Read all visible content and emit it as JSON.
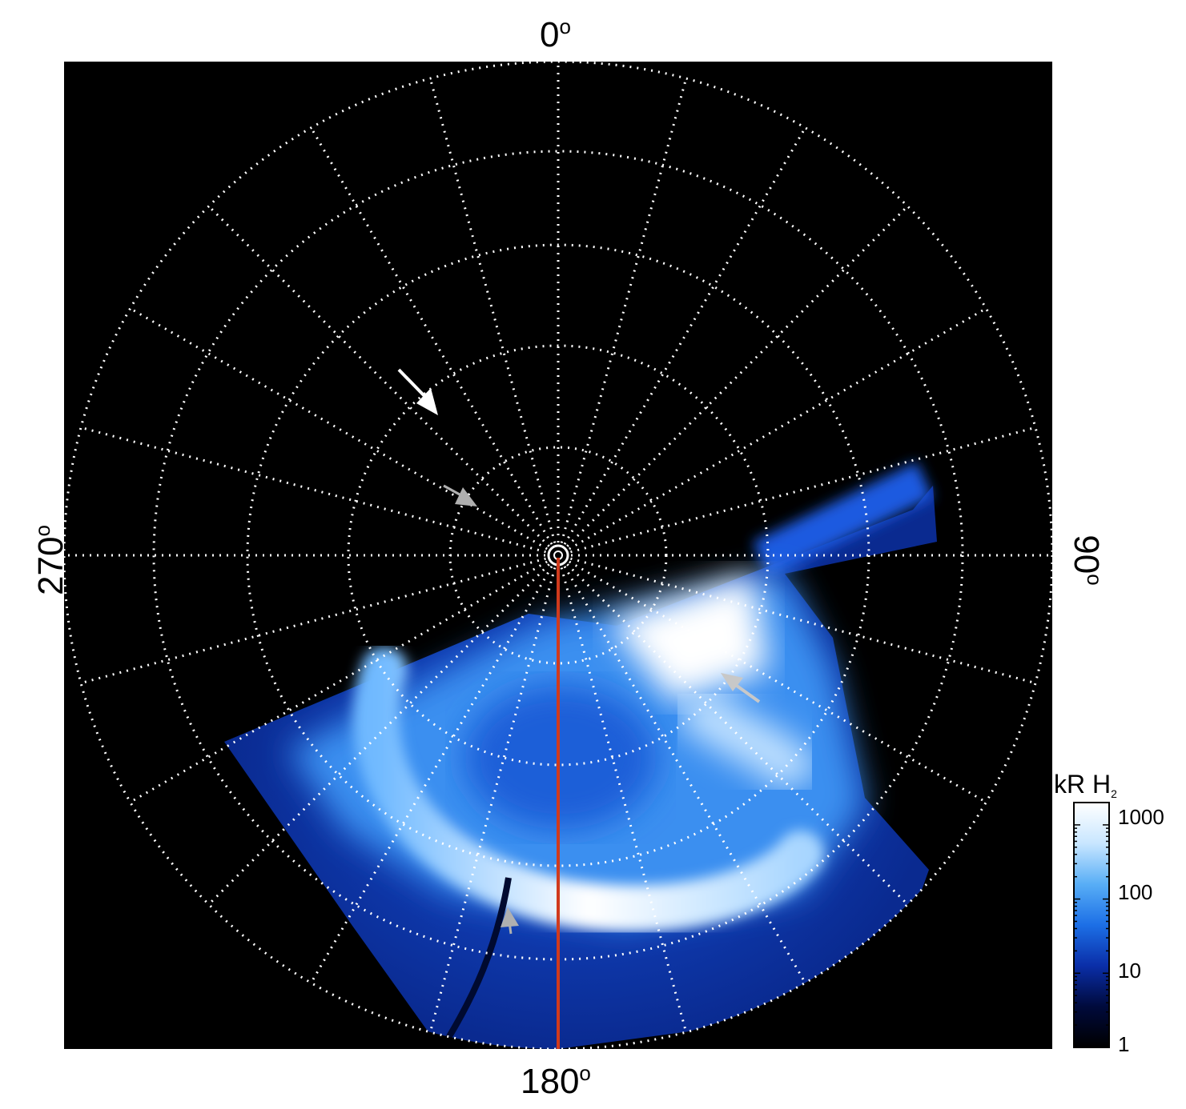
{
  "labels": {
    "top": "0",
    "bottom": "180",
    "left": "270",
    "right": "90",
    "degree_symbol": "o"
  },
  "colorbar": {
    "title": "kR H",
    "title_subscript": "2",
    "ticks": [
      "1000",
      "100",
      "10",
      "1"
    ],
    "colors": [
      "#000000",
      "#000a3c",
      "#0a2ea8",
      "#1c6fe6",
      "#58aef6",
      "#c8e6ff",
      "#ffffff"
    ]
  },
  "image": {
    "background": "#000000",
    "grid_color": "#ffffff",
    "meridian_color": "#d03a1c"
  }
}
